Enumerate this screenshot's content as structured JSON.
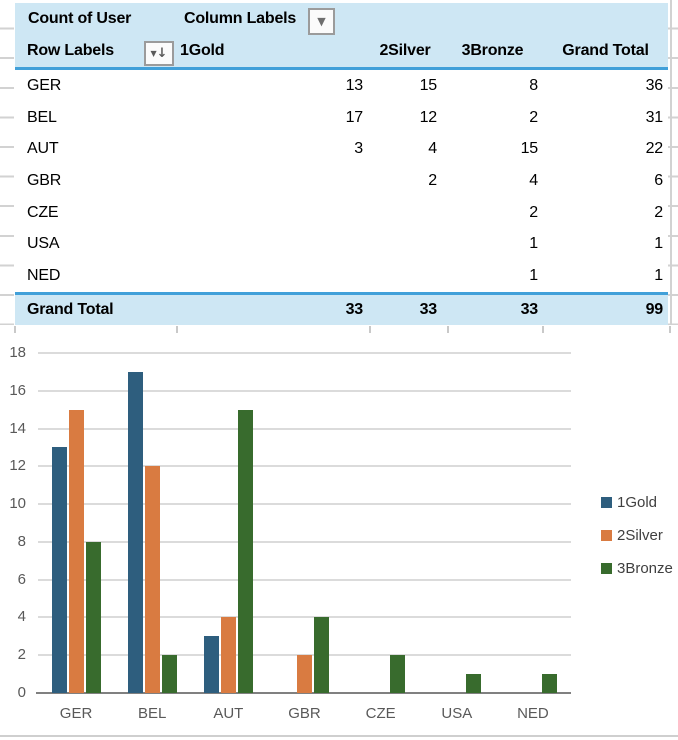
{
  "pivot": {
    "title": "Count of User",
    "column_labels_label": "Column Labels",
    "row_labels_label": "Row Labels",
    "columns": [
      "1Gold",
      "2Silver",
      "3Bronze",
      "Grand Total"
    ],
    "rows": [
      {
        "label": "GER",
        "gold": "13",
        "silver": "15",
        "bronze": "8",
        "total": "36"
      },
      {
        "label": "BEL",
        "gold": "17",
        "silver": "12",
        "bronze": "2",
        "total": "31"
      },
      {
        "label": "AUT",
        "gold": "3",
        "silver": "4",
        "bronze": "15",
        "total": "22"
      },
      {
        "label": "GBR",
        "gold": "",
        "silver": "2",
        "bronze": "4",
        "total": "6"
      },
      {
        "label": "CZE",
        "gold": "",
        "silver": "",
        "bronze": "2",
        "total": "2"
      },
      {
        "label": "USA",
        "gold": "",
        "silver": "",
        "bronze": "1",
        "total": "1"
      },
      {
        "label": "NED",
        "gold": "",
        "silver": "",
        "bronze": "1",
        "total": "1"
      }
    ],
    "grand_total": {
      "label": "Grand Total",
      "gold": "33",
      "silver": "33",
      "bronze": "33",
      "total": "99"
    }
  },
  "icons": {
    "dropdown_arrow": "▼",
    "sort_arrow": "↓"
  },
  "colors": {
    "header_fill": "#cee7f4",
    "header_border": "#41a0d9",
    "gridline": "#dbdbdb",
    "axis_line": "#808080",
    "axis_label": "#595959"
  },
  "chart_data": {
    "type": "bar",
    "categories": [
      "GER",
      "BEL",
      "AUT",
      "GBR",
      "CZE",
      "USA",
      "NED"
    ],
    "series": [
      {
        "name": "1Gold",
        "color": "#2e5e7e",
        "values": [
          13,
          17,
          3,
          null,
          null,
          null,
          null
        ]
      },
      {
        "name": "2Silver",
        "color": "#d97b41",
        "values": [
          15,
          12,
          4,
          2,
          null,
          null,
          null
        ]
      },
      {
        "name": "3Bronze",
        "color": "#386b2d",
        "values": [
          8,
          2,
          15,
          4,
          2,
          1,
          1
        ]
      }
    ],
    "title": "",
    "xlabel": "",
    "ylabel": "",
    "ylim": [
      0,
      18
    ],
    "ytick_step": 2,
    "grid": true,
    "legend_position": "right"
  }
}
